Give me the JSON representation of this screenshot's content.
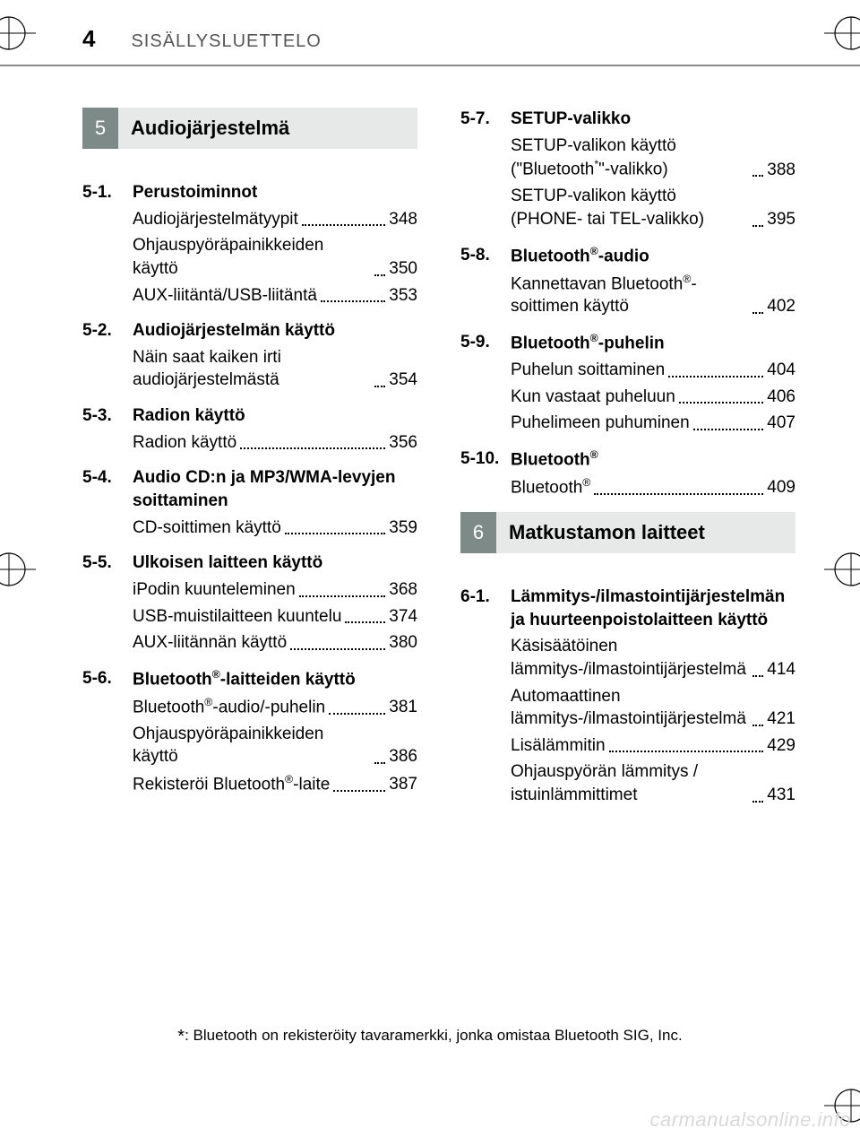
{
  "page_number": "4",
  "header_title": "SISÄLLYSLUETTELO",
  "footnote_prefix": "*",
  "footnote_text": ": Bluetooth on rekisteröity tavaramerkki, jonka omistaa Bluetooth SIG, Inc.",
  "watermark": "carmanualsonline.info",
  "colors": {
    "chapter_num_bg": "#7d8a88",
    "chapter_title_bg": "#e6e9e8",
    "rule": "#888888",
    "text": "#000000",
    "watermark": "#d9d9d9"
  },
  "left_column": {
    "chapter": {
      "num": "5",
      "title": "Audiojärjestelmä"
    },
    "sections": [
      {
        "num": "5-1.",
        "title": "Perustoiminnot",
        "entries": [
          {
            "text": "Audiojärjestelmätyypit",
            "page": "348"
          },
          {
            "text": "Ohjauspyöräpainikkeiden käyttö",
            "page": "350"
          },
          {
            "text": "AUX-liitäntä/USB-liitäntä",
            "page": "353"
          }
        ]
      },
      {
        "num": "5-2.",
        "title": "Audiojärjestelmän käyttö",
        "entries": [
          {
            "text": "Näin saat kaiken irti audiojärjestelmästä",
            "page": "354"
          }
        ]
      },
      {
        "num": "5-3.",
        "title": "Radion käyttö",
        "entries": [
          {
            "text": "Radion käyttö",
            "page": "356"
          }
        ]
      },
      {
        "num": "5-4.",
        "title": "Audio CD:n ja MP3/WMA-levyjen soittaminen",
        "entries": [
          {
            "text": "CD-soittimen käyttö",
            "page": "359"
          }
        ]
      },
      {
        "num": "5-5.",
        "title": "Ulkoisen laitteen käyttö",
        "entries": [
          {
            "text": "iPodin kuunteleminen",
            "page": "368"
          },
          {
            "text": "USB-muistilaitteen kuuntelu",
            "page": "374"
          },
          {
            "text": "AUX-liitännän käyttö",
            "page": "380"
          }
        ]
      },
      {
        "num": "5-6.",
        "title_html": "Bluetooth<sup>®</sup>-laitteiden käyttö",
        "entries": [
          {
            "text_html": "Bluetooth<sup>®</sup>-audio/-puhelin",
            "page": "381"
          },
          {
            "text": "Ohjauspyöräpainikkeiden käyttö",
            "page": "386"
          },
          {
            "text_html": "Rekisteröi Bluetooth<sup>®</sup>-laite",
            "page": "387"
          }
        ]
      }
    ]
  },
  "right_column": {
    "sections_top": [
      {
        "num": "5-7.",
        "title": "SETUP-valikko",
        "entries": [
          {
            "text_html": "SETUP-valikon käyttö (\"Bluetooth<sup>*</sup>\"-valikko)",
            "page": "388"
          },
          {
            "text": "SETUP-valikon käyttö (PHONE- tai TEL-valikko)",
            "page": "395"
          }
        ]
      },
      {
        "num": "5-8.",
        "title_html": "Bluetooth<sup>®</sup>-audio",
        "entries": [
          {
            "text_html": "Kannettavan Bluetooth<sup>®</sup>-soittimen käyttö",
            "page": "402"
          }
        ]
      },
      {
        "num": "5-9.",
        "title_html": "Bluetooth<sup>®</sup>-puhelin",
        "entries": [
          {
            "text": "Puhelun soittaminen",
            "page": "404"
          },
          {
            "text": "Kun vastaat puheluun",
            "page": "406"
          },
          {
            "text": "Puhelimeen puhuminen",
            "page": "407"
          }
        ]
      },
      {
        "num": "5-10.",
        "title_html": "Bluetooth<sup>®</sup>",
        "entries": [
          {
            "text_html": "Bluetooth<sup>®</sup>",
            "page": "409"
          }
        ]
      }
    ],
    "chapter": {
      "num": "6",
      "title": "Matkustamon laitteet"
    },
    "sections_bottom": [
      {
        "num": "6-1.",
        "title": "Lämmitys-/ilmastointijärjestelmän ja huurteenpoistolaitteen käyttö",
        "entries": [
          {
            "text": "Käsisäätöinen lämmitys-/ilmastointijärjestelmä",
            "page": "414"
          },
          {
            "text": "Automaattinen lämmitys-/ilmastointijärjestelmä",
            "page": "421"
          },
          {
            "text": "Lisälämmitin",
            "page": "429"
          },
          {
            "text": "Ohjauspyörän lämmitys / istuinlämmittimet",
            "page": "431"
          }
        ]
      }
    ]
  }
}
